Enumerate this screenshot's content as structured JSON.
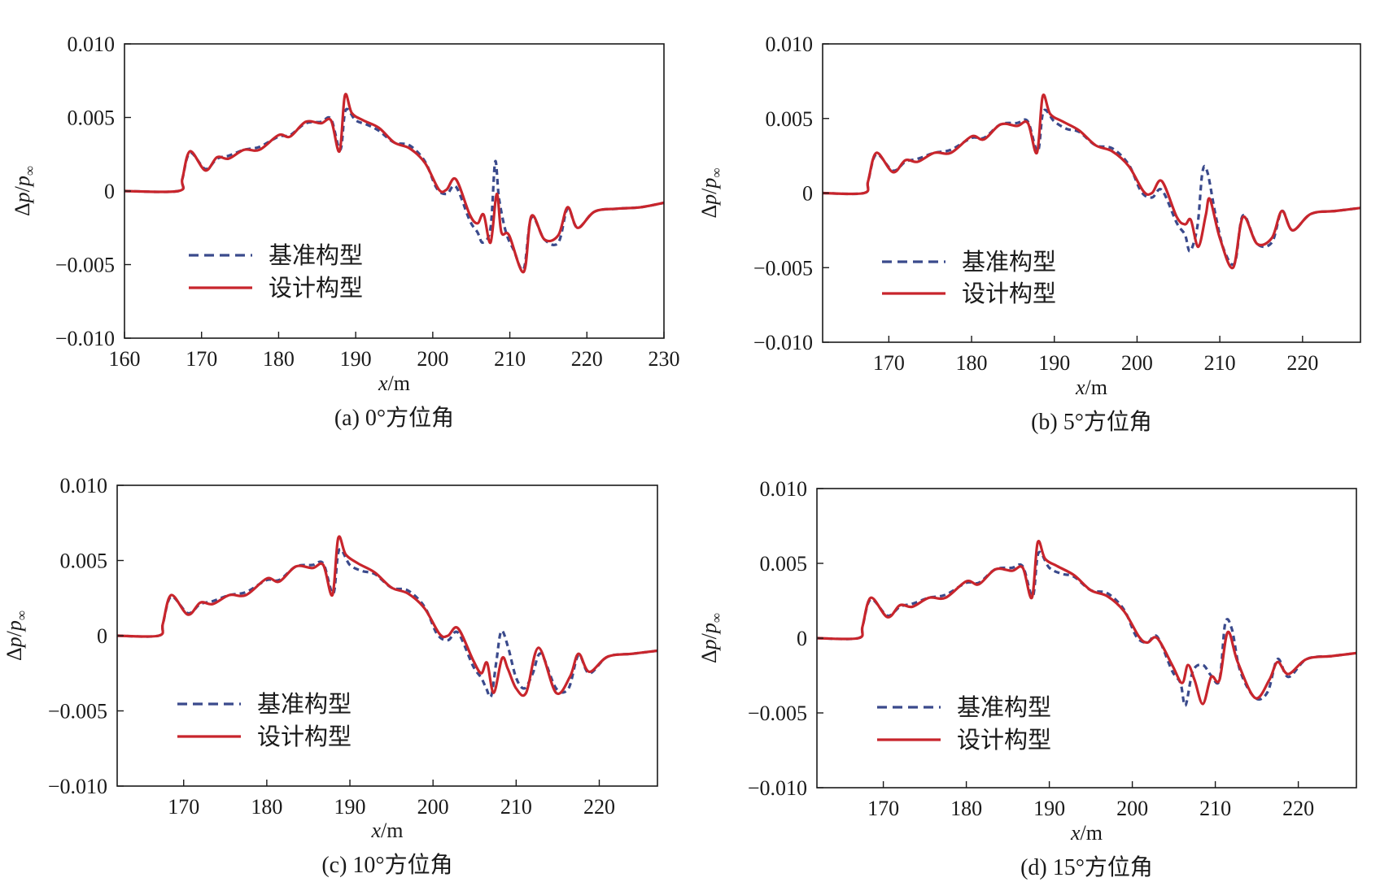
{
  "figure": {
    "legend_labels": [
      "基准构型",
      "设计构型"
    ],
    "colors": {
      "baseline": "#3a4a8c",
      "design": "#c8252c",
      "axis": "#1a1a1a"
    }
  },
  "chart_data": [
    {
      "type": "line",
      "caption": "(a) 0°方位角",
      "xlabel_italic": "x",
      "xlabel_unit": "/m",
      "ylabel": "Δp/p∞",
      "xlim": [
        160,
        230
      ],
      "ylim": [
        -0.01,
        0.01
      ],
      "xticks": [
        160,
        170,
        180,
        190,
        200,
        210,
        220,
        230
      ],
      "xtick_labels": [
        "160",
        "170",
        "180",
        "190",
        "200",
        "210",
        "220",
        "230"
      ],
      "yticks": [
        -0.01,
        -0.005,
        0,
        0.005,
        0.01
      ],
      "ytick_labels": [
        "−0.010",
        "−0.005",
        "0",
        "0.005",
        "0.010"
      ],
      "legend_position": "lower-left",
      "series": [
        {
          "name": "基准构型",
          "style": "dashed",
          "x": [
            160,
            167,
            167.5,
            168.5,
            170.5,
            172,
            173.5,
            175.5,
            177.5,
            180,
            181.5,
            183.5,
            185.5,
            186.8,
            188,
            188.7,
            190,
            191.5,
            193,
            195,
            197,
            199,
            200.5,
            201.8,
            203,
            204.8,
            205.8,
            206.5,
            207.5,
            208.1,
            208.6,
            209.5,
            210.5,
            211.8,
            212.8,
            214.5,
            216.3,
            217.5,
            218.8,
            221,
            224,
            227,
            230
          ],
          "y": [
            0,
            0,
            0.0008,
            0.0026,
            0.0015,
            0.0022,
            0.0024,
            0.0028,
            0.003,
            0.0037,
            0.0038,
            0.0046,
            0.0047,
            0.0049,
            0.0028,
            0.0055,
            0.0048,
            0.0045,
            0.0041,
            0.0033,
            0.0031,
            0.002,
            0.0002,
            -0.0002,
            0.0003,
            -0.002,
            -0.0028,
            -0.0035,
            -0.0025,
            0.002,
            -0.0005,
            -0.0028,
            -0.004,
            -0.0053,
            -0.0018,
            -0.0033,
            -0.0035,
            -0.0012,
            -0.0025,
            -0.0014,
            -0.0012,
            -0.0011,
            -0.0008
          ]
        },
        {
          "name": "设计构型",
          "style": "solid",
          "x": [
            160,
            167,
            167.5,
            168.5,
            170.5,
            172,
            173.5,
            175.5,
            177.5,
            180,
            181.5,
            183.5,
            185.5,
            186.8,
            187.9,
            188.6,
            189.5,
            191,
            193,
            195,
            197,
            199,
            200.8,
            201.8,
            203,
            204.8,
            205.8,
            206.6,
            207.5,
            208.3,
            208.9,
            209.9,
            211.8,
            212.8,
            214.5,
            216.3,
            217.5,
            218.8,
            221,
            224,
            227,
            230
          ],
          "y": [
            0,
            0,
            0.0008,
            0.0027,
            0.0014,
            0.0023,
            0.0022,
            0.0028,
            0.0028,
            0.0038,
            0.0037,
            0.0047,
            0.0046,
            0.0048,
            0.0027,
            0.0065,
            0.0053,
            0.0048,
            0.0043,
            0.0033,
            0.0029,
            0.0019,
            0.0001,
            0.0001,
            0.0008,
            -0.0016,
            -0.0022,
            -0.0016,
            -0.0035,
            -0.0002,
            -0.0028,
            -0.003,
            -0.0055,
            -0.0017,
            -0.0033,
            -0.003,
            -0.0011,
            -0.0025,
            -0.0014,
            -0.0012,
            -0.0011,
            -0.0008
          ]
        }
      ]
    },
    {
      "type": "line",
      "caption": "(b) 5°方位角",
      "xlabel_italic": "x",
      "xlabel_unit": "/m",
      "ylabel": "Δp/p∞",
      "xlim": [
        162,
        227
      ],
      "ylim": [
        -0.01,
        0.01
      ],
      "xticks": [
        170,
        180,
        190,
        200,
        210,
        220
      ],
      "xtick_labels": [
        "170",
        "180",
        "190",
        "200",
        "210",
        "220"
      ],
      "yticks": [
        -0.01,
        -0.005,
        0,
        0.005,
        0.01
      ],
      "ytick_labels": [
        "−0.010",
        "−0.005",
        "0",
        "0.005",
        "0.010"
      ],
      "legend_position": "lower-left",
      "series": [
        {
          "name": "基准构型",
          "style": "dashed",
          "x": [
            162,
            167,
            167.5,
            168.5,
            170.5,
            172,
            173.5,
            175.5,
            177.5,
            180,
            181.5,
            183.5,
            185.5,
            186.8,
            188,
            188.7,
            190,
            191.5,
            193,
            195,
            197,
            199,
            200.5,
            201.8,
            203,
            204.8,
            205.8,
            206.4,
            207.3,
            207.9,
            208.5,
            209.5,
            210.5,
            211.8,
            212.8,
            214.5,
            216.3,
            217.5,
            218.8,
            221,
            224,
            227
          ],
          "y": [
            0,
            0,
            0.0008,
            0.0026,
            0.0015,
            0.0021,
            0.0023,
            0.0027,
            0.0029,
            0.0037,
            0.0037,
            0.0046,
            0.0047,
            0.0048,
            0.0028,
            0.0055,
            0.0048,
            0.0043,
            0.0041,
            0.0032,
            0.003,
            0.0019,
            0.0001,
            -0.0003,
            0.0002,
            -0.002,
            -0.0028,
            -0.0039,
            -0.0022,
            0.0014,
            0.0014,
            -0.0015,
            -0.0038,
            -0.0047,
            -0.0015,
            -0.0034,
            -0.0033,
            -0.0012,
            -0.0025,
            -0.0014,
            -0.0012,
            -0.001
          ]
        },
        {
          "name": "设计构型",
          "style": "solid",
          "x": [
            162,
            167,
            167.5,
            168.5,
            170.5,
            172,
            173.5,
            175.5,
            177.5,
            180,
            181.5,
            183.5,
            185.5,
            186.8,
            187.9,
            188.6,
            189.5,
            191,
            193,
            195,
            197,
            199,
            200.8,
            201.8,
            203,
            204.8,
            205.8,
            206.5,
            207.4,
            208.3,
            208.8,
            210,
            211.6,
            212.8,
            214.5,
            216.3,
            217.5,
            218.8,
            221,
            224,
            227
          ],
          "y": [
            0,
            0,
            0.0008,
            0.0027,
            0.0014,
            0.0022,
            0.0021,
            0.0027,
            0.0027,
            0.0038,
            0.0036,
            0.0046,
            0.0045,
            0.0047,
            0.0027,
            0.0065,
            0.0053,
            0.0048,
            0.0042,
            0.0032,
            0.0028,
            0.0018,
            0.0001,
            0,
            0.0008,
            -0.0016,
            -0.0021,
            -0.0018,
            -0.0036,
            -0.0015,
            -0.0004,
            -0.003,
            -0.005,
            -0.0016,
            -0.0034,
            -0.003,
            -0.0012,
            -0.0025,
            -0.0014,
            -0.0012,
            -0.001
          ]
        }
      ]
    },
    {
      "type": "line",
      "caption": "(c) 10°方位角",
      "xlabel_italic": "x",
      "xlabel_unit": "/m",
      "ylabel": "Δp/p∞",
      "xlim": [
        162,
        227
      ],
      "ylim": [
        -0.01,
        0.01
      ],
      "xticks": [
        170,
        180,
        190,
        200,
        210,
        220
      ],
      "xtick_labels": [
        "170",
        "180",
        "190",
        "200",
        "210",
        "220"
      ],
      "yticks": [
        -0.01,
        -0.005,
        0,
        0.005,
        0.01
      ],
      "ytick_labels": [
        "−0.010",
        "−0.005",
        "0",
        "0.005",
        "0.010"
      ],
      "legend_position": "lower-left",
      "series": [
        {
          "name": "基准构型",
          "style": "dashed",
          "x": [
            162,
            167,
            167.5,
            168.5,
            170.5,
            172,
            173.5,
            175.5,
            177.5,
            180,
            181.5,
            183.5,
            185.5,
            186.8,
            188,
            188.7,
            190,
            191.5,
            193,
            195,
            197,
            199,
            200.5,
            201.8,
            203,
            204.8,
            205.8,
            206.4,
            207,
            207.6,
            208.2,
            209,
            210,
            211,
            212,
            213,
            214.8,
            216.3,
            217.5,
            218.8,
            221,
            224,
            227
          ],
          "y": [
            0,
            0,
            0.0008,
            0.0026,
            0.0015,
            0.0021,
            0.0023,
            0.0027,
            0.0029,
            0.0037,
            0.0037,
            0.0046,
            0.0047,
            0.0048,
            0.0028,
            0.0057,
            0.0047,
            0.0043,
            0.0041,
            0.0032,
            0.003,
            0.0019,
            0.0001,
            -0.0003,
            0.0002,
            -0.002,
            -0.0028,
            -0.0035,
            -0.004,
            -0.0018,
            0.0003,
            -0.0007,
            -0.0028,
            -0.0035,
            -0.0025,
            -0.0012,
            -0.0035,
            -0.0035,
            -0.0013,
            -0.0025,
            -0.0014,
            -0.0012,
            -0.001
          ]
        },
        {
          "name": "设计构型",
          "style": "solid",
          "x": [
            162,
            167,
            167.5,
            168.5,
            170.5,
            172,
            173.5,
            175.5,
            177.5,
            180,
            181.5,
            183.5,
            185.5,
            186.8,
            187.9,
            188.6,
            189.5,
            191,
            193,
            195,
            197,
            199,
            200.8,
            201.8,
            203,
            204.8,
            205.8,
            206.5,
            207.3,
            208.3,
            209,
            210,
            211.2,
            212.7,
            214.8,
            216.5,
            217.5,
            218.8,
            221,
            224,
            227
          ],
          "y": [
            0,
            0,
            0.0008,
            0.0027,
            0.0014,
            0.0022,
            0.0021,
            0.0027,
            0.0027,
            0.0038,
            0.0036,
            0.0046,
            0.0045,
            0.0047,
            0.0027,
            0.0065,
            0.0054,
            0.0048,
            0.0042,
            0.0032,
            0.0028,
            0.0018,
            0.0001,
            0,
            0.0005,
            -0.0016,
            -0.0025,
            -0.0018,
            -0.0038,
            -0.0015,
            -0.0022,
            -0.0035,
            -0.0038,
            -0.0008,
            -0.0038,
            -0.0027,
            -0.0012,
            -0.0024,
            -0.0014,
            -0.0012,
            -0.001
          ]
        }
      ]
    },
    {
      "type": "line",
      "caption": "(d) 15°方位角",
      "xlabel_italic": "x",
      "xlabel_unit": "/m",
      "ylabel": "Δp/p∞",
      "xlim": [
        162,
        227
      ],
      "ylim": [
        -0.01,
        0.01
      ],
      "xticks": [
        170,
        180,
        190,
        200,
        210,
        220
      ],
      "xtick_labels": [
        "170",
        "180",
        "190",
        "200",
        "210",
        "220"
      ],
      "yticks": [
        -0.01,
        -0.005,
        0,
        0.005,
        0.01
      ],
      "ytick_labels": [
        "−0.010",
        "−0.005",
        "0",
        "0.005",
        "0.010"
      ],
      "legend_position": "lower-left",
      "series": [
        {
          "name": "基准构型",
          "style": "dashed",
          "x": [
            162,
            167,
            167.5,
            168.5,
            170.5,
            172,
            173.5,
            175.5,
            177.5,
            180,
            181.5,
            183.5,
            185.5,
            186.8,
            188,
            188.7,
            190,
            191.5,
            193,
            195,
            197,
            199,
            200.5,
            201.8,
            203,
            204.8,
            205.8,
            206.4,
            207.3,
            208.5,
            209.5,
            210.5,
            211.2,
            212,
            213,
            214.8,
            216.3,
            217.5,
            218.8,
            221,
            224,
            227
          ],
          "y": [
            0,
            0,
            0.0008,
            0.0026,
            0.0015,
            0.0021,
            0.0023,
            0.0027,
            0.0029,
            0.0037,
            0.0037,
            0.0046,
            0.0047,
            0.0048,
            0.0028,
            0.0057,
            0.0047,
            0.0043,
            0.0041,
            0.0032,
            0.003,
            0.0019,
            0.0001,
            -0.0003,
            0.0001,
            -0.0022,
            -0.003,
            -0.0045,
            -0.0022,
            -0.0018,
            -0.0025,
            -0.0028,
            0.001,
            0.0006,
            -0.0022,
            -0.004,
            -0.0036,
            -0.0014,
            -0.0026,
            -0.0014,
            -0.0012,
            -0.001
          ]
        },
        {
          "name": "设计构型",
          "style": "solid",
          "x": [
            162,
            167,
            167.5,
            168.5,
            170.5,
            172,
            173.5,
            175.5,
            177.5,
            180,
            181.5,
            183.5,
            185.5,
            186.8,
            187.9,
            188.6,
            189.5,
            191,
            193,
            195,
            197,
            199,
            200.8,
            201.8,
            203,
            204.8,
            206,
            206.7,
            207.5,
            208.5,
            209.5,
            210.5,
            211.5,
            212.7,
            214.8,
            216.5,
            217.5,
            218.8,
            221,
            224,
            227
          ],
          "y": [
            0,
            0,
            0.0008,
            0.0027,
            0.0014,
            0.0022,
            0.0021,
            0.0027,
            0.0027,
            0.0038,
            0.0036,
            0.0046,
            0.0045,
            0.0047,
            0.0027,
            0.0064,
            0.0053,
            0.0048,
            0.0042,
            0.0032,
            0.0028,
            0.0018,
            0.0001,
            -0.0003,
            0,
            -0.0018,
            -0.003,
            -0.0018,
            -0.0028,
            -0.0044,
            -0.0026,
            -0.0028,
            0.0004,
            -0.0016,
            -0.004,
            -0.0028,
            -0.0016,
            -0.0024,
            -0.0014,
            -0.0012,
            -0.001
          ]
        }
      ]
    }
  ]
}
